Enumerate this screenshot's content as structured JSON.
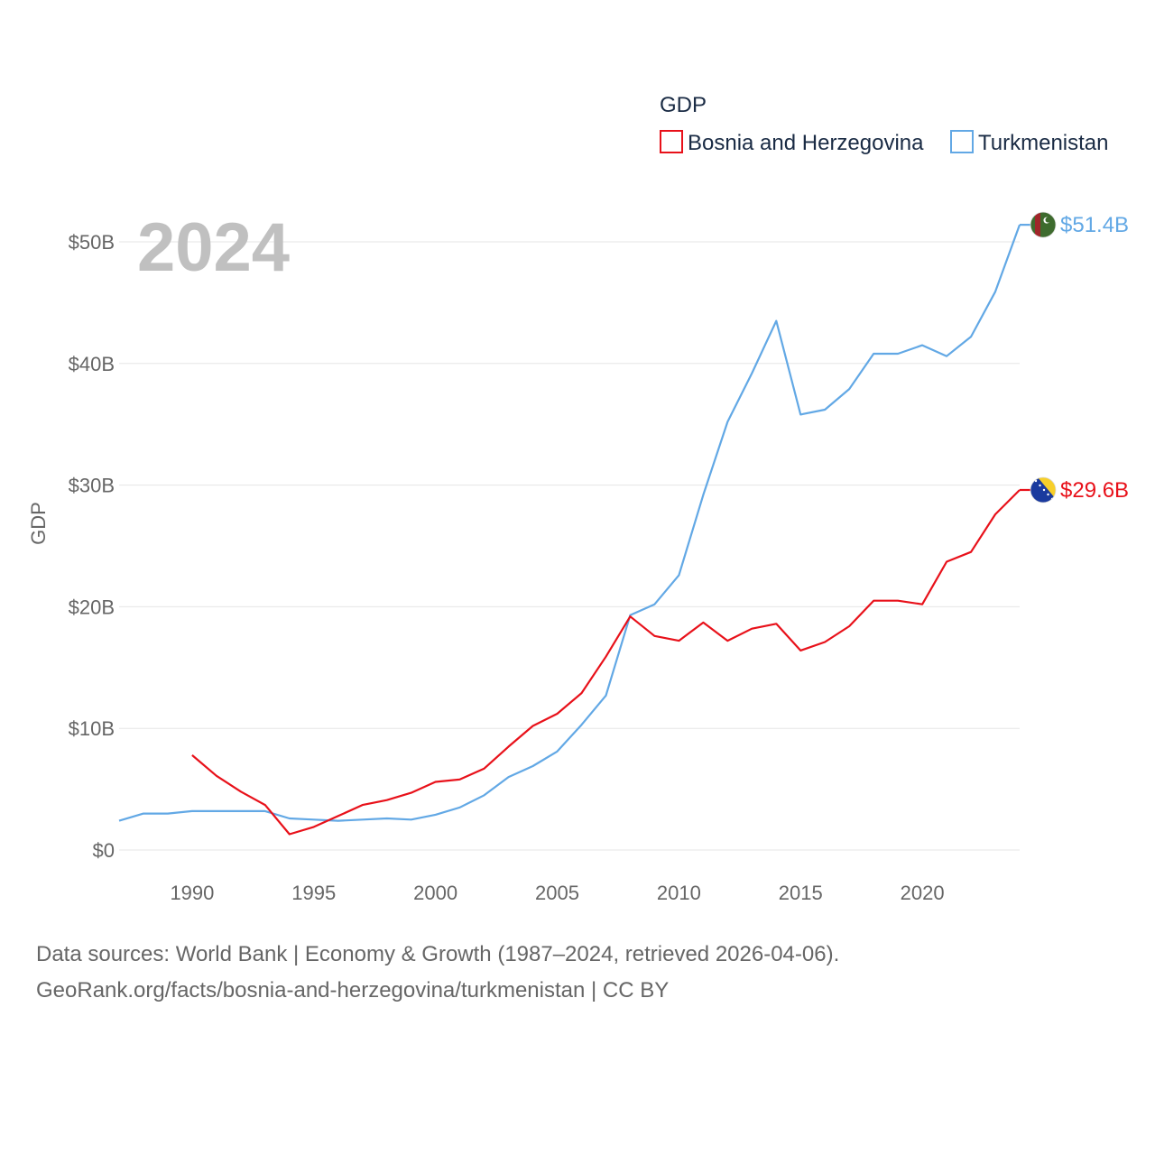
{
  "chart_data": {
    "type": "line",
    "year_label": "2024",
    "ylabel": "GDP",
    "legend_title": "GDP",
    "ylim": [
      0,
      50
    ],
    "xlim": [
      1987,
      2024
    ],
    "y_ticks": [
      0,
      10,
      20,
      30,
      40,
      50
    ],
    "y_tick_labels": [
      "$0",
      "$10B",
      "$20B",
      "$30B",
      "$40B",
      "$50B"
    ],
    "x_ticks": [
      1990,
      1995,
      2000,
      2005,
      2010,
      2015,
      2020
    ],
    "x_tick_labels": [
      "1990",
      "1995",
      "2000",
      "2005",
      "2010",
      "2015",
      "2020"
    ],
    "series": [
      {
        "name": "Bosnia and Herzegovina",
        "color": "#e8111a",
        "end_label": "$29.6B",
        "flag": "bosnia-flag-icon",
        "x": [
          1990,
          1991,
          1992,
          1993,
          1994,
          1995,
          1996,
          1997,
          1998,
          1999,
          2000,
          2001,
          2002,
          2003,
          2004,
          2005,
          2006,
          2007,
          2008,
          2009,
          2010,
          2011,
          2012,
          2013,
          2014,
          2015,
          2016,
          2017,
          2018,
          2019,
          2020,
          2021,
          2022,
          2023,
          2024
        ],
        "values": [
          7.8,
          6.1,
          4.8,
          3.7,
          1.3,
          1.9,
          2.8,
          3.7,
          4.1,
          4.7,
          5.6,
          5.8,
          6.7,
          8.5,
          10.2,
          11.2,
          12.9,
          15.9,
          19.2,
          17.6,
          17.2,
          18.7,
          17.2,
          18.2,
          18.6,
          16.4,
          17.1,
          18.4,
          20.5,
          20.5,
          20.2,
          23.7,
          24.5,
          27.6,
          29.6
        ]
      },
      {
        "name": "Turkmenistan",
        "color": "#62a8e5",
        "end_label": "$51.4B",
        "flag": "turkmenistan-flag-icon",
        "x": [
          1987,
          1988,
          1989,
          1990,
          1991,
          1992,
          1993,
          1994,
          1995,
          1996,
          1997,
          1998,
          1999,
          2000,
          2001,
          2002,
          2003,
          2004,
          2005,
          2006,
          2007,
          2008,
          2009,
          2010,
          2011,
          2012,
          2013,
          2014,
          2015,
          2016,
          2017,
          2018,
          2019,
          2020,
          2021,
          2022,
          2023,
          2024
        ],
        "values": [
          2.4,
          3.0,
          3.0,
          3.2,
          3.2,
          3.2,
          3.2,
          2.6,
          2.5,
          2.4,
          2.5,
          2.6,
          2.5,
          2.9,
          3.5,
          4.5,
          6.0,
          6.9,
          8.1,
          10.3,
          12.7,
          19.3,
          20.2,
          22.6,
          29.2,
          35.2,
          39.2,
          43.5,
          35.8,
          36.2,
          37.9,
          40.8,
          40.8,
          41.5,
          40.6,
          42.2,
          45.9,
          51.4
        ]
      }
    ]
  },
  "footer": {
    "line1": "Data sources: World Bank | Economy & Growth (1987–2024, retrieved 2026-04-06).",
    "line2": "GeoRank.org/facts/bosnia-and-herzegovina/turkmenistan | CC BY"
  }
}
